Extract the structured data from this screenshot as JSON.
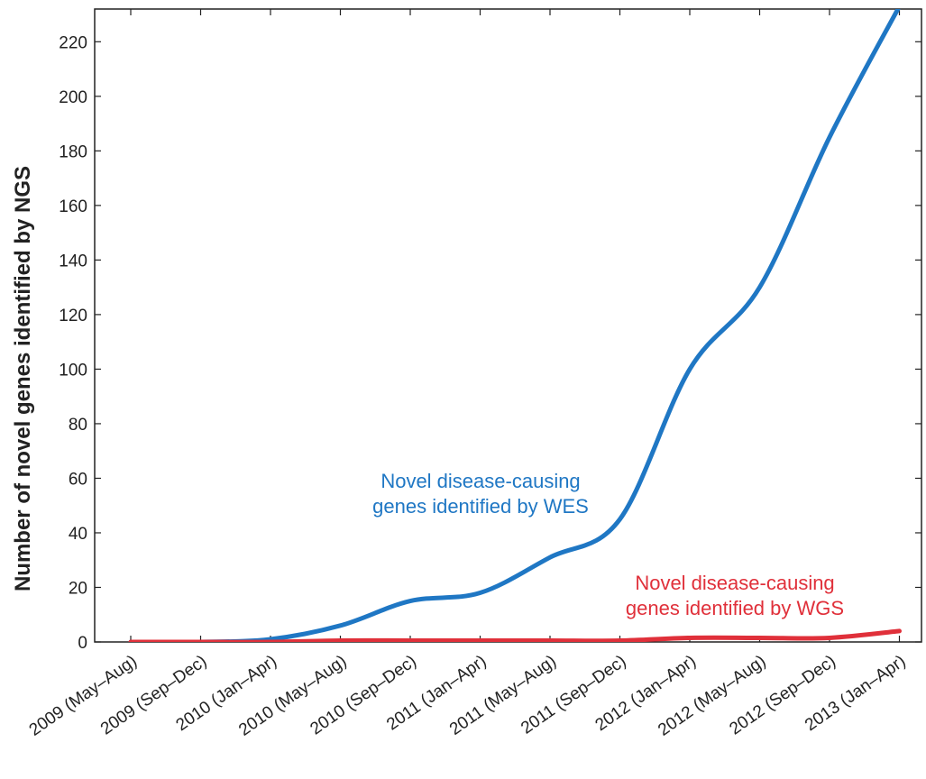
{
  "chart_data": {
    "type": "line",
    "title": "",
    "ylabel": "Number of novel genes identified by NGS",
    "xlabel": "",
    "categories": [
      "2009 (May–Aug)",
      "2009 (Sep–Dec)",
      "2010 (Jan–Apr)",
      "2010 (May–Aug)",
      "2010 (Sep–Dec)",
      "2011 (Jan–Apr)",
      "2011 (May–Aug)",
      "2011 (Sep–Dec)",
      "2012 (Jan–Apr)",
      "2012 (May–Aug)",
      "2012 (Sep–Dec)",
      "2013 (Jan–Apr)"
    ],
    "ylim": [
      0,
      232
    ],
    "yticks": [
      0,
      20,
      40,
      60,
      80,
      100,
      120,
      140,
      160,
      180,
      200,
      220
    ],
    "grid": false,
    "series": [
      {
        "color": "#1f77c4",
        "values": [
          0,
          0,
          1,
          6,
          15,
          18,
          31,
          45,
          100,
          130,
          185,
          233
        ],
        "annotation": [
          "Novel disease-causing",
          "genes identified by WES"
        ]
      },
      {
        "color": "#e0303a",
        "values": [
          0,
          0,
          0,
          0.5,
          0.5,
          0.5,
          0.5,
          0.5,
          1.5,
          1.5,
          1.5,
          4
        ],
        "annotation": [
          "Novel disease-causing",
          "genes identified by WGS"
        ]
      }
    ]
  }
}
